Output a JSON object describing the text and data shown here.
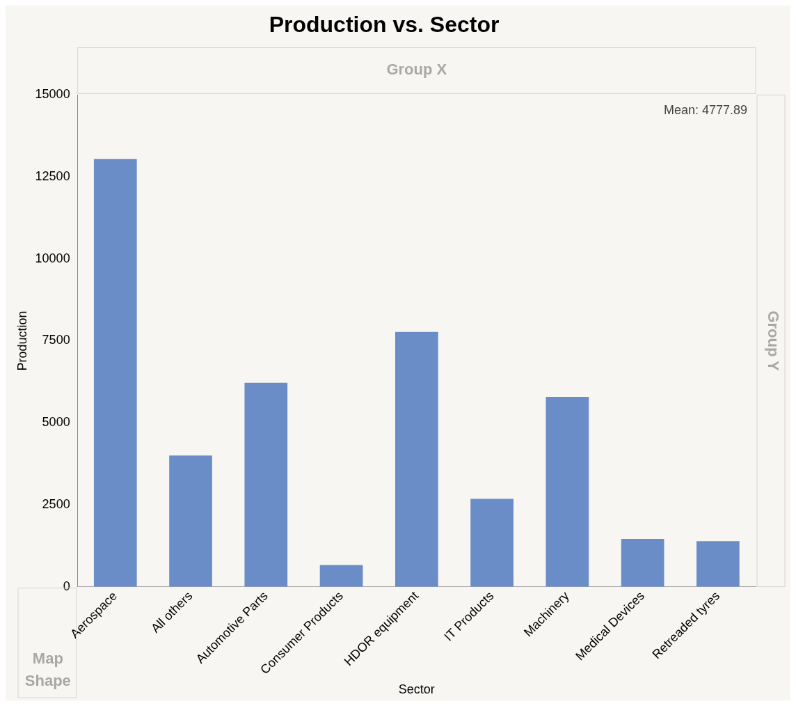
{
  "chart_data": {
    "type": "bar",
    "title": "Production vs. Sector",
    "xlabel": "Sector",
    "ylabel": "Production",
    "categories": [
      "Aerospace",
      "All others",
      "Automotive Parts",
      "Consumer Products",
      "HDOR equipment",
      "IT Products",
      "Machinery",
      "Medical Devices",
      "Retreaded tyres"
    ],
    "values": [
      13050,
      4000,
      6220,
      660,
      7770,
      2680,
      5790,
      1460,
      1390
    ],
    "color": "#6a8dc8",
    "ylim": [
      0,
      15000
    ],
    "yticks": [
      0,
      2500,
      5000,
      7500,
      10000,
      12500,
      15000
    ],
    "grid": false,
    "legend": false,
    "annotations": [
      "Mean: 4777.89",
      "Group X",
      "Group Y",
      "Map Shape"
    ]
  }
}
